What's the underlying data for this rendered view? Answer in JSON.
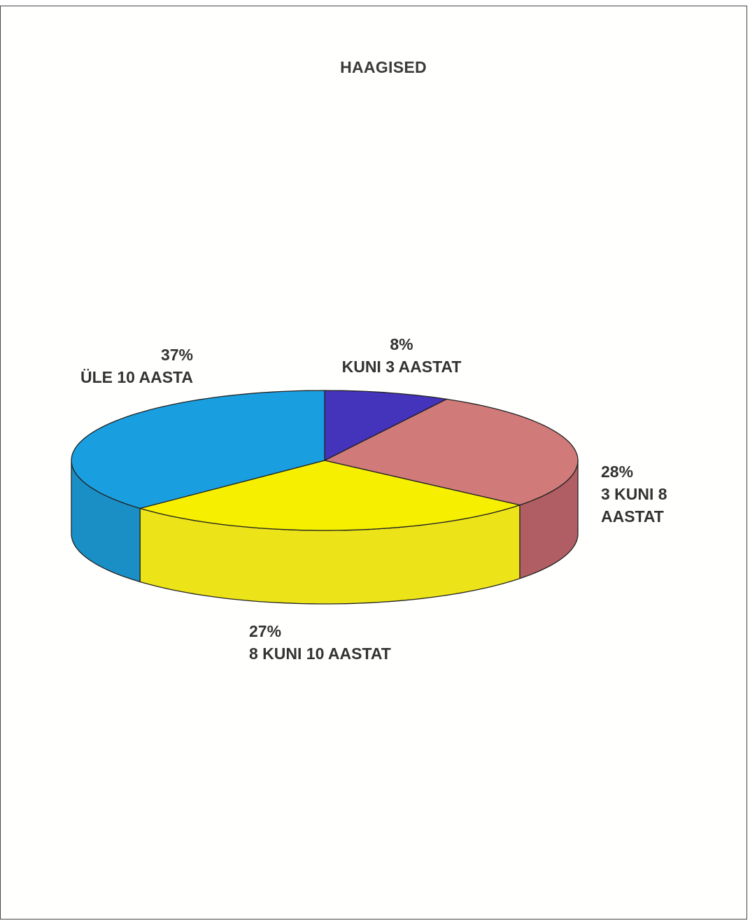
{
  "chart_data": {
    "type": "pie",
    "title": "HAAGISED",
    "three_d": true,
    "slices": [
      {
        "percent_label": "8%",
        "name_lines": [
          "KUNI 3 AASTAT"
        ],
        "value": 8,
        "color": "#4433bb",
        "side_color": "#332699"
      },
      {
        "percent_label": "28%",
        "name_lines": [
          "3 KUNI 8",
          "AASTAT"
        ],
        "value": 28,
        "color": "#d07a7a",
        "side_color": "#b05e63"
      },
      {
        "percent_label": "27%",
        "name_lines": [
          "8 KUNI 10 AASTAT"
        ],
        "value": 27,
        "color": "#f6f000",
        "side_color": "#ece418"
      },
      {
        "percent_label": "37%",
        "name_lines": [
          "ÜLE 10 AASTA"
        ],
        "value": 37,
        "color": "#199fe0",
        "side_color": "#1a8fc6"
      }
    ]
  }
}
